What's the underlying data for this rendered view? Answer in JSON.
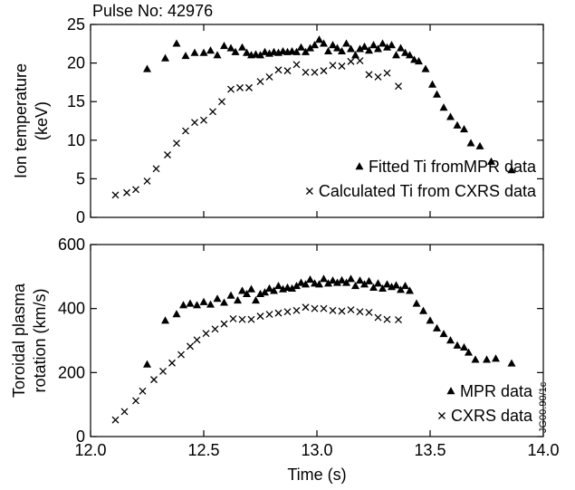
{
  "header": {
    "pulse_label": "Pulse No: 42976"
  },
  "footnote": "JG00.90/1c",
  "chart_data": [
    {
      "type": "scatter",
      "title": "",
      "xlabel": "",
      "ylabel": "Ion temperature\n(keV)",
      "xlim": [
        12.0,
        14.0
      ],
      "ylim": [
        0,
        25
      ],
      "xticks": [
        12.0,
        12.5,
        13.0,
        13.5,
        14.0
      ],
      "yticks": [
        0,
        5,
        10,
        15,
        20,
        25
      ],
      "legend": "bottom-right",
      "series": [
        {
          "name": "Fitted Ti fromMPR data",
          "marker": "triangle",
          "points": [
            [
              12.25,
              19.2
            ],
            [
              12.33,
              20.6
            ],
            [
              12.38,
              22.5
            ],
            [
              12.42,
              20.9
            ],
            [
              12.46,
              21.3
            ],
            [
              12.5,
              21.3
            ],
            [
              12.53,
              21.6
            ],
            [
              12.56,
              21.0
            ],
            [
              12.59,
              22.2
            ],
            [
              12.62,
              21.9
            ],
            [
              12.64,
              21.4
            ],
            [
              12.67,
              22.0
            ],
            [
              12.69,
              21.3
            ],
            [
              12.71,
              21.0
            ],
            [
              12.73,
              21.1
            ],
            [
              12.75,
              21.0
            ],
            [
              12.77,
              21.4
            ],
            [
              12.79,
              21.2
            ],
            [
              12.81,
              21.4
            ],
            [
              12.83,
              21.3
            ],
            [
              12.85,
              21.5
            ],
            [
              12.87,
              21.4
            ],
            [
              12.89,
              21.5
            ],
            [
              12.91,
              21.4
            ],
            [
              12.93,
              22.0
            ],
            [
              12.95,
              21.4
            ],
            [
              12.97,
              21.9
            ],
            [
              12.99,
              22.3
            ],
            [
              13.01,
              23.0
            ],
            [
              13.03,
              22.5
            ],
            [
              13.05,
              21.5
            ],
            [
              13.07,
              22.3
            ],
            [
              13.09,
              21.9
            ],
            [
              13.11,
              21.5
            ],
            [
              13.13,
              22.5
            ],
            [
              13.15,
              21.8
            ],
            [
              13.17,
              21.0
            ],
            [
              13.19,
              21.8
            ],
            [
              13.21,
              22.1
            ],
            [
              13.23,
              21.6
            ],
            [
              13.25,
              22.3
            ],
            [
              13.27,
              21.8
            ],
            [
              13.29,
              22.5
            ],
            [
              13.31,
              22.0
            ],
            [
              13.33,
              22.3
            ],
            [
              13.35,
              21.0
            ],
            [
              13.37,
              21.9
            ],
            [
              13.39,
              21.3
            ],
            [
              13.41,
              21.0
            ],
            [
              13.43,
              20.4
            ],
            [
              13.45,
              20.2
            ],
            [
              13.48,
              19.2
            ],
            [
              13.51,
              17.2
            ],
            [
              13.53,
              15.9
            ],
            [
              13.56,
              14.2
            ],
            [
              13.59,
              13.0
            ],
            [
              13.62,
              11.9
            ],
            [
              13.65,
              11.4
            ],
            [
              13.68,
              9.6
            ],
            [
              13.72,
              9.2
            ],
            [
              13.77,
              7.2
            ],
            [
              13.86,
              6.1
            ]
          ]
        },
        {
          "name": "Calculated Ti from CXRS data",
          "marker": "x",
          "points": [
            [
              12.11,
              2.9
            ],
            [
              12.16,
              3.2
            ],
            [
              12.2,
              3.6
            ],
            [
              12.25,
              4.7
            ],
            [
              12.29,
              6.3
            ],
            [
              12.34,
              8.1
            ],
            [
              12.38,
              9.6
            ],
            [
              12.42,
              11.2
            ],
            [
              12.46,
              12.3
            ],
            [
              12.5,
              12.6
            ],
            [
              12.54,
              13.7
            ],
            [
              12.58,
              15.0
            ],
            [
              12.62,
              16.6
            ],
            [
              12.66,
              16.8
            ],
            [
              12.7,
              16.8
            ],
            [
              12.75,
              17.6
            ],
            [
              12.79,
              18.2
            ],
            [
              12.83,
              19.1
            ],
            [
              12.87,
              19.0
            ],
            [
              12.91,
              19.8
            ],
            [
              12.95,
              18.8
            ],
            [
              12.99,
              18.8
            ],
            [
              13.03,
              19.0
            ],
            [
              13.07,
              19.7
            ],
            [
              13.11,
              19.6
            ],
            [
              13.15,
              20.2
            ],
            [
              13.19,
              20.3
            ],
            [
              13.23,
              18.5
            ],
            [
              13.27,
              18.2
            ],
            [
              13.31,
              18.7
            ],
            [
              13.36,
              17.0
            ]
          ]
        }
      ]
    },
    {
      "type": "scatter",
      "title": "",
      "xlabel": "Time (s)",
      "ylabel": "Toroidal plasma\nrotation (km/s)",
      "xlim": [
        12.0,
        14.0
      ],
      "ylim": [
        0,
        600
      ],
      "xticks": [
        12.0,
        12.5,
        13.0,
        13.5,
        14.0
      ],
      "yticks": [
        0,
        200,
        400,
        600
      ],
      "legend": "bottom-right",
      "series": [
        {
          "name": "MPR data",
          "marker": "triangle",
          "points": [
            [
              12.25,
              225
            ],
            [
              12.33,
              362
            ],
            [
              12.38,
              382
            ],
            [
              12.41,
              410
            ],
            [
              12.44,
              415
            ],
            [
              12.47,
              410
            ],
            [
              12.5,
              420
            ],
            [
              12.53,
              412
            ],
            [
              12.56,
              430
            ],
            [
              12.59,
              418
            ],
            [
              12.62,
              440
            ],
            [
              12.65,
              425
            ],
            [
              12.67,
              455
            ],
            [
              12.69,
              445
            ],
            [
              12.71,
              460
            ],
            [
              12.73,
              425
            ],
            [
              12.75,
              445
            ],
            [
              12.77,
              450
            ],
            [
              12.79,
              462
            ],
            [
              12.81,
              455
            ],
            [
              12.83,
              470
            ],
            [
              12.85,
              460
            ],
            [
              12.87,
              465
            ],
            [
              12.89,
              462
            ],
            [
              12.91,
              470
            ],
            [
              12.93,
              480
            ],
            [
              12.95,
              475
            ],
            [
              12.97,
              490
            ],
            [
              12.99,
              478
            ],
            [
              13.01,
              475
            ],
            [
              13.03,
              492
            ],
            [
              13.05,
              478
            ],
            [
              13.07,
              487
            ],
            [
              13.09,
              480
            ],
            [
              13.11,
              488
            ],
            [
              13.13,
              480
            ],
            [
              13.15,
              492
            ],
            [
              13.17,
              470
            ],
            [
              13.19,
              487
            ],
            [
              13.21,
              475
            ],
            [
              13.23,
              485
            ],
            [
              13.25,
              465
            ],
            [
              13.27,
              478
            ],
            [
              13.29,
              462
            ],
            [
              13.31,
              475
            ],
            [
              13.33,
              467
            ],
            [
              13.35,
              472
            ],
            [
              13.37,
              458
            ],
            [
              13.39,
              470
            ],
            [
              13.41,
              455
            ],
            [
              13.44,
              415
            ],
            [
              13.47,
              392
            ],
            [
              13.5,
              362
            ],
            [
              13.53,
              338
            ],
            [
              13.56,
              320
            ],
            [
              13.59,
              300
            ],
            [
              13.62,
              284
            ],
            [
              13.65,
              278
            ],
            [
              13.67,
              262
            ],
            [
              13.7,
              240
            ],
            [
              13.75,
              240
            ],
            [
              13.79,
              243
            ],
            [
              13.86,
              228
            ]
          ]
        },
        {
          "name": "CXRS data",
          "marker": "x",
          "points": [
            [
              12.11,
              52
            ],
            [
              12.15,
              78
            ],
            [
              12.2,
              112
            ],
            [
              12.23,
              142
            ],
            [
              12.28,
              178
            ],
            [
              12.32,
              204
            ],
            [
              12.36,
              230
            ],
            [
              12.4,
              256
            ],
            [
              12.44,
              282
            ],
            [
              12.47,
              302
            ],
            [
              12.51,
              322
            ],
            [
              12.55,
              336
            ],
            [
              12.59,
              352
            ],
            [
              12.63,
              368
            ],
            [
              12.67,
              366
            ],
            [
              12.71,
              366
            ],
            [
              12.75,
              376
            ],
            [
              12.79,
              382
            ],
            [
              12.83,
              386
            ],
            [
              12.87,
              390
            ],
            [
              12.91,
              394
            ],
            [
              12.95,
              404
            ],
            [
              12.99,
              400
            ],
            [
              13.03,
              400
            ],
            [
              13.07,
              394
            ],
            [
              13.11,
              392
            ],
            [
              13.15,
              396
            ],
            [
              13.19,
              390
            ],
            [
              13.23,
              388
            ],
            [
              13.27,
              372
            ],
            [
              13.31,
              366
            ],
            [
              13.36,
              365
            ]
          ]
        }
      ]
    }
  ]
}
